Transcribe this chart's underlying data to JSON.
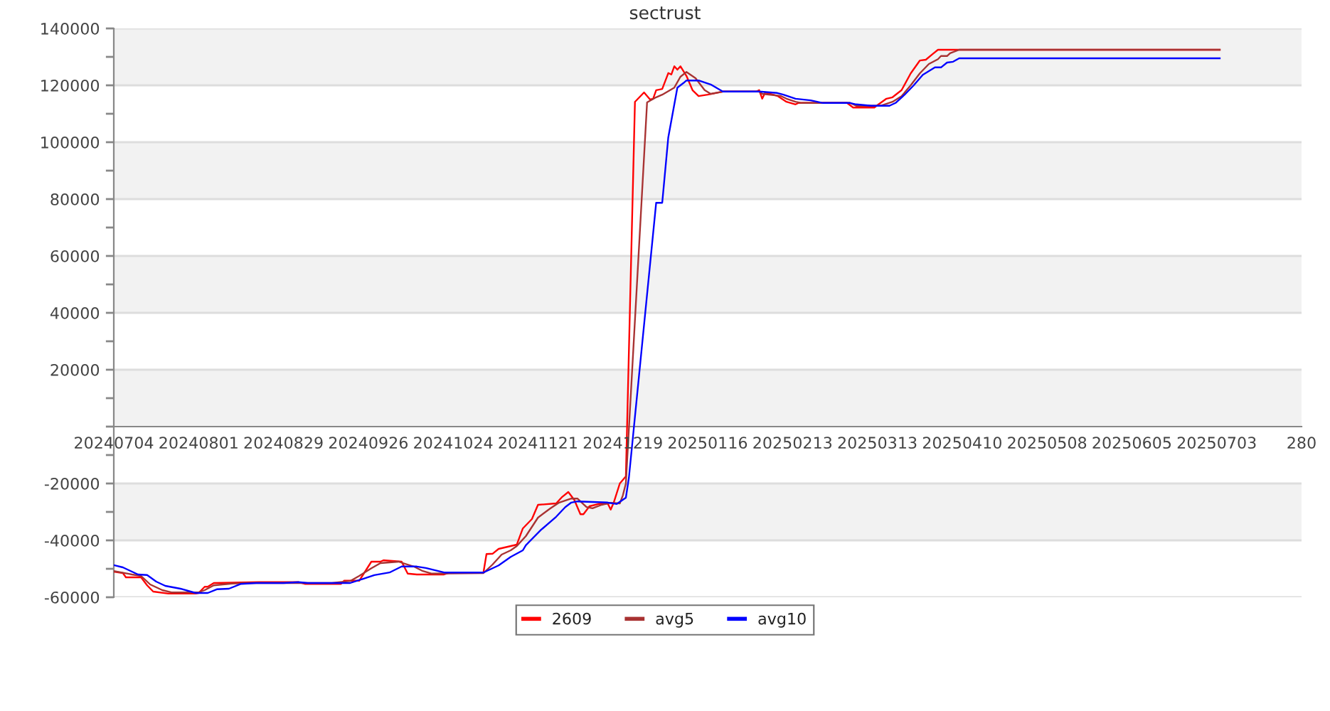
{
  "chart_data": {
    "type": "line",
    "title": "sectrust",
    "xlim": [
      "2024-07-04",
      "2025-07-31"
    ],
    "xticks": [
      {
        "value": "2024-07-04",
        "label": "20240704"
      },
      {
        "value": "2024-08-01",
        "label": "20240801"
      },
      {
        "value": "2024-08-29",
        "label": "20240829"
      },
      {
        "value": "2024-09-26",
        "label": "20240926"
      },
      {
        "value": "2024-10-24",
        "label": "20241024"
      },
      {
        "value": "2024-11-21",
        "label": "20241121"
      },
      {
        "value": "2024-12-19",
        "label": "20241219"
      },
      {
        "value": "2025-01-16",
        "label": "20250116"
      },
      {
        "value": "2025-02-13",
        "label": "20250213"
      },
      {
        "value": "2025-03-13",
        "label": "20250313"
      },
      {
        "value": "2025-04-10",
        "label": "20250410"
      },
      {
        "value": "2025-05-08",
        "label": "20250508"
      },
      {
        "value": "2025-06-05",
        "label": "20250605"
      },
      {
        "value": "2025-07-03",
        "label": "20250703"
      },
      {
        "value": "2025-07-31",
        "label": "280"
      }
    ],
    "ylim": [
      -60000,
      140000
    ],
    "yticks": [
      -60000,
      {
        "value": -50000,
        "label": null
      },
      -40000,
      {
        "value": -30000,
        "label": null
      },
      -20000,
      {
        "value": -10000,
        "label": null
      },
      {
        "value": 0,
        "label": null
      },
      {
        "value": 10000,
        "label": null
      },
      20000,
      {
        "value": 30000,
        "label": null
      },
      40000,
      {
        "value": 50000,
        "label": null
      },
      60000,
      {
        "value": 70000,
        "label": null
      },
      80000,
      {
        "value": 90000,
        "label": null
      },
      100000,
      {
        "value": 110000,
        "label": null
      },
      120000,
      {
        "value": 130000,
        "label": null
      },
      140000
    ],
    "grid": "y",
    "legend": "bottom",
    "bands": [
      {
        "axis": "y",
        "from": 120000,
        "to": 140000,
        "color": "#f2f2f2"
      },
      {
        "axis": "y",
        "from": 80000,
        "to": 100000,
        "color": "#f2f2f2"
      },
      {
        "axis": "y",
        "from": 40000,
        "to": 60000,
        "color": "#f2f2f2"
      },
      {
        "axis": "y",
        "from": 0,
        "to": 20000,
        "color": "#f2f2f2"
      },
      {
        "axis": "y",
        "from": -40000,
        "to": -20000,
        "color": "#f2f2f2"
      }
    ],
    "series": [
      {
        "name": "2609",
        "color": "#ff0000",
        "x": [
          "2024-07-04",
          "2024-07-07",
          "2024-07-08",
          "2024-07-13",
          "2024-07-15",
          "2024-07-17",
          "2024-07-22",
          "2024-07-31",
          "2024-08-01",
          "2024-08-03",
          "2024-08-04",
          "2024-08-06",
          "2024-08-21",
          "2024-09-03",
          "2024-09-05",
          "2024-09-17",
          "2024-09-18",
          "2024-09-23",
          "2024-09-27",
          "2024-09-30",
          "2024-10-01",
          "2024-10-07",
          "2024-10-09",
          "2024-10-12",
          "2024-10-21",
          "2024-10-23",
          "2024-11-03",
          "2024-11-04",
          "2024-11-06",
          "2024-11-08",
          "2024-11-12",
          "2024-11-14",
          "2024-11-16",
          "2024-11-19",
          "2024-11-21",
          "2024-11-27",
          "2024-11-29",
          "2024-12-01",
          "2024-12-03",
          "2024-12-05",
          "2024-12-06",
          "2024-12-08",
          "2024-12-11",
          "2024-12-14",
          "2024-12-15",
          "2024-12-16",
          "2024-12-18",
          "2024-12-20",
          "2024-12-23",
          "2024-12-26",
          "2024-12-28",
          "2024-12-29",
          "2024-12-30",
          "2025-01-01",
          "2025-01-03",
          "2025-01-04",
          "2025-01-05",
          "2025-01-06",
          "2025-01-07",
          "2025-01-09",
          "2025-01-11",
          "2025-01-13",
          "2025-01-16",
          "2025-01-21",
          "2025-02-01",
          "2025-02-02",
          "2025-02-03",
          "2025-02-04",
          "2025-02-08",
          "2025-02-11",
          "2025-02-14",
          "2025-02-15",
          "2025-03-03",
          "2025-03-05",
          "2025-03-12",
          "2025-03-13",
          "2025-03-16",
          "2025-03-18",
          "2025-03-21",
          "2025-03-24",
          "2025-03-27",
          "2025-03-29",
          "2025-03-31",
          "2025-04-02",
          "2025-07-04"
        ],
        "values": [
          -51000,
          -51500,
          -53000,
          -53000,
          -55800,
          -58000,
          -58700,
          -58700,
          -58500,
          -56300,
          -56300,
          -55000,
          -54700,
          -54700,
          -55300,
          -55300,
          -54200,
          -54200,
          -47500,
          -47500,
          -47000,
          -47500,
          -51700,
          -52000,
          -52000,
          -51300,
          -51300,
          -44800,
          -44700,
          -43000,
          -42000,
          -41500,
          -35800,
          -32500,
          -27500,
          -27000,
          -24700,
          -23000,
          -25800,
          -30800,
          -30800,
          -28000,
          -27200,
          -27000,
          -29200,
          -26700,
          -20000,
          -17500,
          114200,
          117500,
          115000,
          115300,
          118300,
          118700,
          124300,
          123800,
          126700,
          125500,
          126700,
          123300,
          118300,
          116200,
          116700,
          117800,
          117800,
          118300,
          115300,
          117500,
          116300,
          114200,
          113300,
          113800,
          113800,
          112200,
          112200,
          113000,
          115300,
          115800,
          118300,
          124200,
          128700,
          129000,
          130800,
          132500,
          132500
        ]
      },
      {
        "name": "avg5",
        "color": "#a83232",
        "x": [
          "2024-07-04",
          "2024-07-09",
          "2024-07-10",
          "2024-07-13",
          "2024-07-16",
          "2024-07-20",
          "2024-07-23",
          "2024-08-01",
          "2024-08-03",
          "2024-08-06",
          "2024-08-09",
          "2024-08-12",
          "2024-08-17",
          "2024-09-14",
          "2024-09-20",
          "2024-09-23",
          "2024-09-27",
          "2024-09-30",
          "2024-10-06",
          "2024-10-11",
          "2024-10-14",
          "2024-10-17",
          "2024-11-03",
          "2024-11-06",
          "2024-11-09",
          "2024-11-12",
          "2024-11-14",
          "2024-11-17",
          "2024-11-21",
          "2024-11-25",
          "2024-11-28",
          "2024-12-02",
          "2024-12-04",
          "2024-12-07",
          "2024-12-09",
          "2024-12-12",
          "2024-12-15",
          "2024-12-18",
          "2024-12-19",
          "2024-12-20",
          "2024-12-27",
          "2024-12-30",
          "2025-01-01",
          "2025-01-05",
          "2025-01-07",
          "2025-01-09",
          "2025-01-12",
          "2025-01-15",
          "2025-01-17",
          "2025-01-21",
          "2025-02-02",
          "2025-02-03",
          "2025-02-09",
          "2025-02-11",
          "2025-02-14",
          "2025-02-16",
          "2025-03-04",
          "2025-03-06",
          "2025-03-14",
          "2025-03-18",
          "2025-03-21",
          "2025-03-24",
          "2025-03-27",
          "2025-03-30",
          "2025-04-02",
          "2025-04-03",
          "2025-04-05",
          "2025-04-06",
          "2025-04-09",
          "2025-07-04"
        ],
        "values": [
          -50800,
          -51800,
          -52000,
          -52500,
          -55500,
          -57500,
          -58300,
          -58300,
          -57500,
          -55800,
          -55500,
          -55200,
          -55000,
          -55000,
          -54300,
          -52500,
          -49800,
          -48000,
          -47500,
          -49200,
          -50800,
          -51700,
          -51500,
          -48500,
          -45000,
          -43500,
          -42000,
          -38500,
          -32000,
          -28800,
          -26700,
          -25300,
          -25300,
          -28300,
          -28700,
          -27500,
          -26800,
          -27000,
          -24200,
          -20000,
          114000,
          115800,
          116700,
          119200,
          123000,
          124700,
          122500,
          118300,
          117000,
          117800,
          117800,
          117000,
          116300,
          115300,
          114200,
          113800,
          113800,
          112800,
          112800,
          114200,
          116200,
          120000,
          124200,
          127500,
          129200,
          130300,
          130300,
          131300,
          132500,
          132500
        ]
      },
      {
        "name": "avg10",
        "color": "#0000ff",
        "x": [
          "2024-07-04",
          "2024-07-07",
          "2024-07-12",
          "2024-07-15",
          "2024-07-18",
          "2024-07-21",
          "2024-07-26",
          "2024-07-31",
          "2024-08-04",
          "2024-08-07",
          "2024-08-11",
          "2024-08-15",
          "2024-08-20",
          "2024-08-29",
          "2024-09-03",
          "2024-09-06",
          "2024-09-20",
          "2024-09-25",
          "2024-09-28",
          "2024-10-03",
          "2024-10-07",
          "2024-10-12",
          "2024-10-15",
          "2024-10-21",
          "2024-11-03",
          "2024-11-08",
          "2024-11-12",
          "2024-11-16",
          "2024-11-17",
          "2024-11-22",
          "2024-11-27",
          "2024-11-30",
          "2024-12-02",
          "2024-12-04",
          "2024-12-14",
          "2024-12-17",
          "2024-12-20",
          "2024-12-21",
          "2024-12-30",
          "2025-01-01",
          "2025-01-03",
          "2025-01-06",
          "2025-01-08",
          "2025-01-09",
          "2025-01-13",
          "2025-01-17",
          "2025-01-21",
          "2025-02-02",
          "2025-02-08",
          "2025-02-10",
          "2025-02-14",
          "2025-02-19",
          "2025-02-23",
          "2025-03-04",
          "2025-03-06",
          "2025-03-11",
          "2025-03-17",
          "2025-03-19",
          "2025-03-22",
          "2025-03-25",
          "2025-03-28",
          "2025-04-01",
          "2025-04-03",
          "2025-04-05",
          "2025-04-07",
          "2025-04-09",
          "2025-07-04"
        ],
        "values": [
          -48700,
          -49500,
          -52000,
          -52200,
          -54500,
          -56000,
          -57000,
          -58500,
          -58500,
          -57200,
          -57000,
          -55300,
          -55000,
          -55000,
          -54700,
          -55000,
          -55000,
          -53300,
          -52200,
          -51300,
          -49200,
          -49200,
          -49700,
          -51300,
          -51300,
          -48800,
          -45800,
          -43500,
          -41700,
          -36300,
          -31700,
          -28300,
          -26700,
          -26300,
          -26700,
          -27200,
          -25000,
          -18000,
          78700,
          78700,
          101700,
          119200,
          120800,
          121700,
          121700,
          120300,
          117800,
          117800,
          117300,
          116700,
          115300,
          114700,
          113800,
          113800,
          113300,
          112800,
          112800,
          113800,
          116700,
          120000,
          123700,
          126300,
          126300,
          128000,
          128300,
          129500,
          129500
        ]
      }
    ]
  }
}
